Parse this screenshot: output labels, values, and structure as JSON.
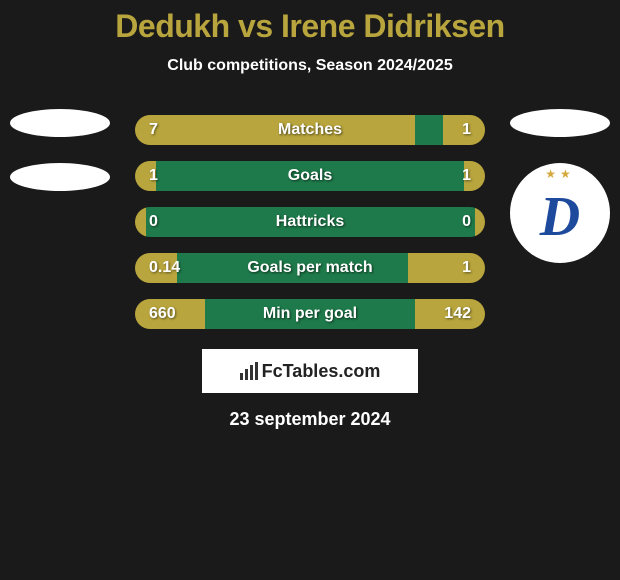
{
  "title": "Dedukh vs Irene Didriksen",
  "subtitle": "Club competitions, Season 2024/2025",
  "colors": {
    "background": "#1a1a1a",
    "title": "#b8a53d",
    "text": "#ffffff",
    "bar_primary": "#b8a53d",
    "bar_secondary": "#1e7a4a",
    "badge_bg": "#ffffff",
    "dynamo_blue": "#1e4a9e",
    "dynamo_star": "#d4a83d"
  },
  "stats": [
    {
      "label": "Matches",
      "left_value": "7",
      "right_value": "1",
      "left_pct": 80,
      "right_pct": 12
    },
    {
      "label": "Goals",
      "left_value": "1",
      "right_value": "1",
      "left_pct": 6,
      "right_pct": 6
    },
    {
      "label": "Hattricks",
      "left_value": "0",
      "right_value": "0",
      "left_pct": 3,
      "right_pct": 3
    },
    {
      "label": "Goals per match",
      "left_value": "0.14",
      "right_value": "1",
      "left_pct": 12,
      "right_pct": 22
    },
    {
      "label": "Min per goal",
      "left_value": "660",
      "right_value": "142",
      "left_pct": 20,
      "right_pct": 20
    }
  ],
  "badge_text": "FcTables.com",
  "date": "23 september 2024",
  "logos": {
    "left": [
      {
        "type": "ellipse"
      },
      {
        "type": "ellipse"
      }
    ],
    "right": [
      {
        "type": "ellipse"
      },
      {
        "type": "dynamo"
      }
    ]
  }
}
